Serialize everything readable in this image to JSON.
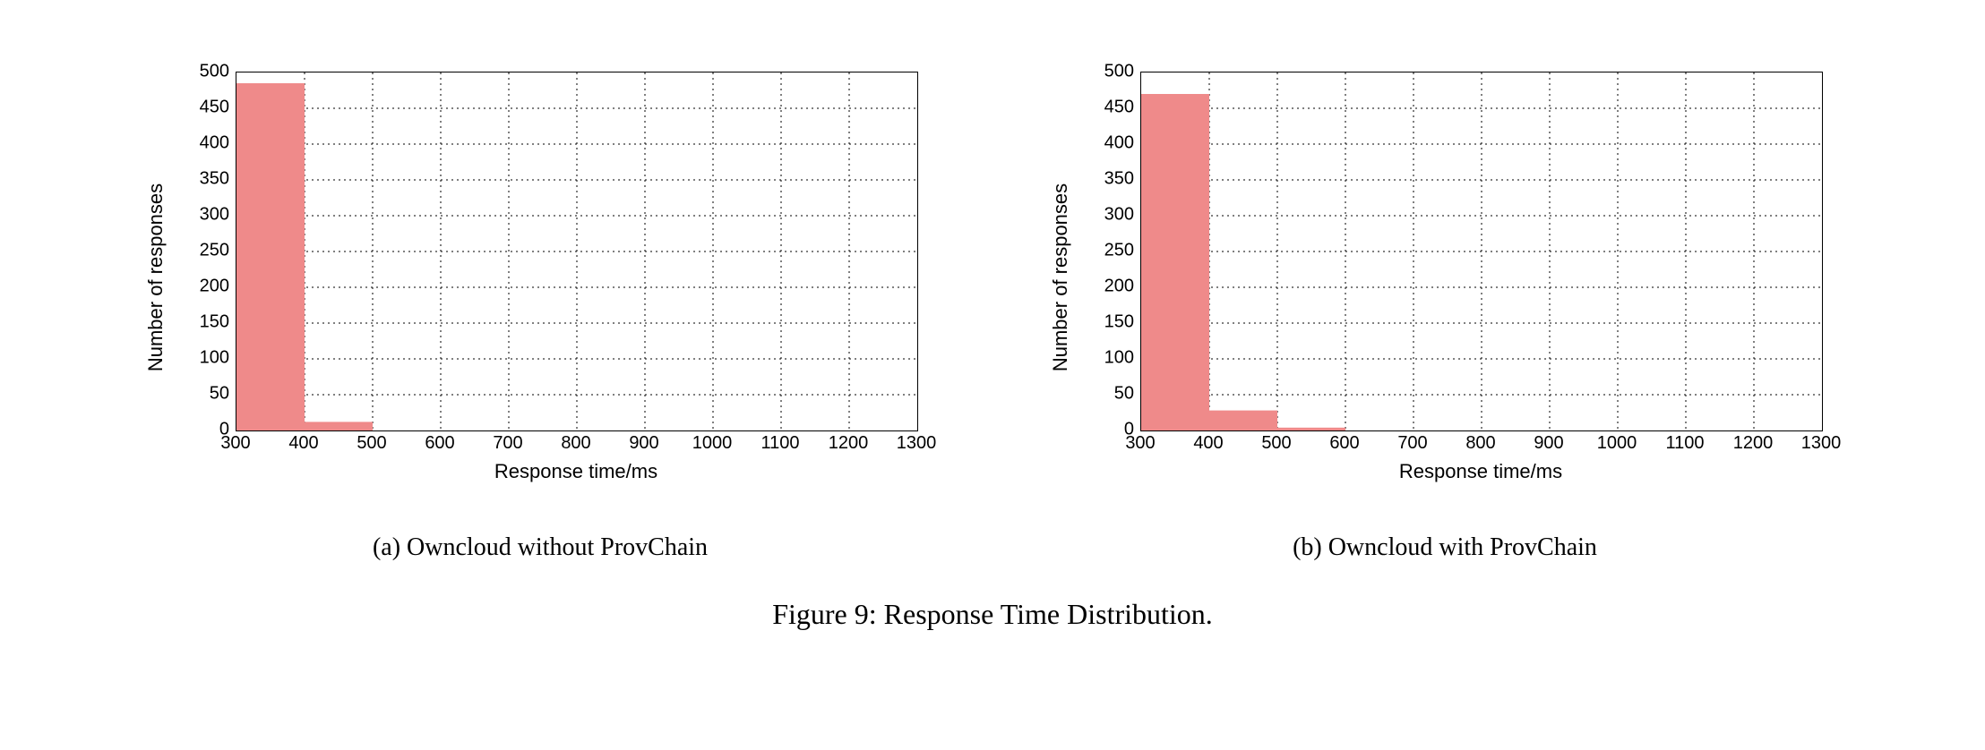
{
  "figure": {
    "caption": "Figure 9: Response Time Distribution.",
    "caption_fontsize_pt": 24,
    "subcaption_fontsize_pt": 21,
    "panels": [
      {
        "id": "a",
        "subcaption": "(a) Owncloud without ProvChain",
        "chart": {
          "type": "histogram",
          "xlabel": "Response time/ms",
          "ylabel": "Number of responses",
          "label_fontsize_pt": 16,
          "tick_fontsize_pt": 15,
          "xlim": [
            300,
            1300
          ],
          "ylim": [
            0,
            500
          ],
          "xticks": [
            300,
            400,
            500,
            600,
            700,
            800,
            900,
            1000,
            1100,
            1200,
            1300
          ],
          "yticks": [
            0,
            50,
            100,
            150,
            200,
            250,
            300,
            350,
            400,
            450,
            500
          ],
          "grid": {
            "x": true,
            "y": true,
            "color": "#000000",
            "dash": "2 4"
          },
          "border_color": "#000000",
          "background_color": "#ffffff",
          "bar_color": "#ef8a8a",
          "bar_opacity": 1.0,
          "bin_edges": [
            300,
            400,
            500,
            600,
            700,
            800,
            900,
            1000,
            1100,
            1200,
            1300
          ],
          "bin_counts": [
            485,
            12,
            0,
            0,
            0,
            0,
            0,
            0,
            0,
            0
          ]
        }
      },
      {
        "id": "b",
        "subcaption": "(b) Owncloud with ProvChain",
        "chart": {
          "type": "histogram",
          "xlabel": "Response time/ms",
          "ylabel": "Number of responses",
          "label_fontsize_pt": 16,
          "tick_fontsize_pt": 15,
          "xlim": [
            300,
            1300
          ],
          "ylim": [
            0,
            500
          ],
          "xticks": [
            300,
            400,
            500,
            600,
            700,
            800,
            900,
            1000,
            1100,
            1200,
            1300
          ],
          "yticks": [
            0,
            50,
            100,
            150,
            200,
            250,
            300,
            350,
            400,
            450,
            500
          ],
          "grid": {
            "x": true,
            "y": true,
            "color": "#000000",
            "dash": "2 4"
          },
          "border_color": "#000000",
          "background_color": "#ffffff",
          "bar_color": "#ef8a8a",
          "bar_opacity": 1.0,
          "bin_edges": [
            300,
            400,
            500,
            600,
            700,
            800,
            900,
            1000,
            1100,
            1200,
            1300
          ],
          "bin_counts": [
            470,
            28,
            4,
            0,
            0,
            0,
            0,
            0,
            0,
            0
          ]
        }
      }
    ]
  }
}
